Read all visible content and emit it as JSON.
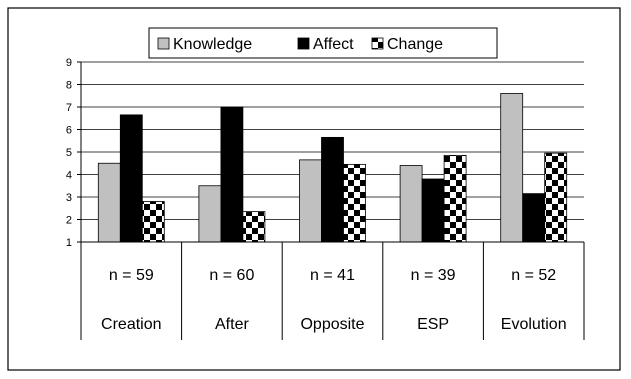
{
  "chart_data": {
    "type": "bar",
    "title": "",
    "xlabel": "",
    "ylabel": "",
    "ylim": [
      1,
      9
    ],
    "yticks": [
      1,
      2,
      3,
      4,
      5,
      6,
      7,
      8,
      9
    ],
    "grid": true,
    "legend": "top-center",
    "categories": [
      "Creation",
      "After",
      "Opposite",
      "ESP",
      "Evolution"
    ],
    "sample_sizes": [
      "n = 59",
      "n = 60",
      "n = 41",
      "n = 39",
      "n = 52"
    ],
    "series": [
      {
        "name": "Knowledge",
        "values": [
          4.5,
          3.5,
          4.65,
          4.4,
          7.6
        ],
        "color": "#c0c0c0",
        "pattern": "solid"
      },
      {
        "name": "Affect",
        "values": [
          6.65,
          7.0,
          5.65,
          3.8,
          3.15
        ],
        "color": "#000000",
        "pattern": "solid"
      },
      {
        "name": "Change",
        "values": [
          2.8,
          2.35,
          4.45,
          4.85,
          4.95
        ],
        "color": "#000000",
        "pattern": "checker"
      }
    ]
  }
}
